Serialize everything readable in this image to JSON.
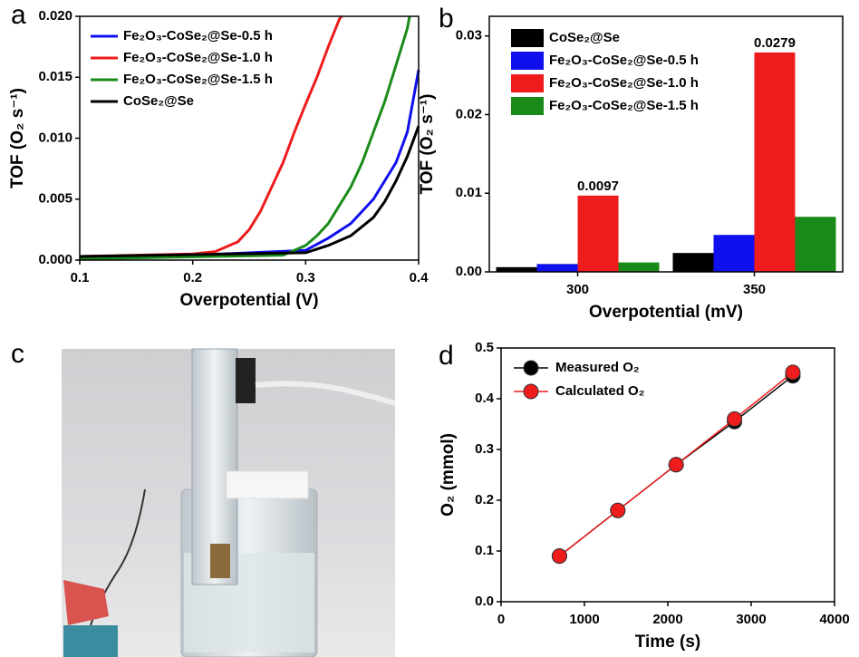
{
  "chart_data": [
    {
      "type": "line",
      "panel": "a",
      "xlabel": "Overpotential (V)",
      "ylabel": "TOF (O₂ s⁻¹)",
      "xlim": [
        0.1,
        0.4
      ],
      "ylim": [
        0,
        0.02
      ],
      "xticks": [
        0.1,
        0.2,
        0.3,
        0.4
      ],
      "yticks": [
        {
          "value": 0,
          "label": "0.000"
        },
        {
          "value": 0.005,
          "label": "0.005"
        },
        {
          "value": 0.01,
          "label": "0.010"
        },
        {
          "value": 0.015,
          "label": "0.015"
        },
        {
          "value": 0.02,
          "label": "0.020"
        }
      ],
      "legend": "upper left",
      "series": [
        {
          "name": "Fe₂O₃-CoSe₂@Se-0.5 h",
          "color": "#1010ee",
          "x": [
            0.1,
            0.2,
            0.3,
            0.32,
            0.34,
            0.36,
            0.38,
            0.39,
            0.4
          ],
          "values": [
            0.0003,
            0.0004,
            0.0008,
            0.0018,
            0.003,
            0.005,
            0.008,
            0.0105,
            0.0156
          ]
        },
        {
          "name": "Fe₂O₃-CoSe₂@Se-1.0 h",
          "color": "#ee1c1c",
          "x": [
            0.1,
            0.2,
            0.22,
            0.24,
            0.25,
            0.26,
            0.27,
            0.28,
            0.29,
            0.3,
            0.31,
            0.32,
            0.33,
            0.332
          ],
          "values": [
            0.0003,
            0.0005,
            0.0007,
            0.0015,
            0.0025,
            0.004,
            0.006,
            0.008,
            0.0105,
            0.0128,
            0.015,
            0.0175,
            0.0198,
            0.02
          ]
        },
        {
          "name": "Fe₂O₃-CoSe₂@Se-1.5 h",
          "color": "#1a8a1a",
          "x": [
            0.1,
            0.28,
            0.3,
            0.31,
            0.32,
            0.33,
            0.34,
            0.35,
            0.36,
            0.37,
            0.38,
            0.39,
            0.392
          ],
          "values": [
            0.0001,
            0.0004,
            0.0012,
            0.002,
            0.003,
            0.0045,
            0.006,
            0.008,
            0.0105,
            0.013,
            0.016,
            0.019,
            0.02
          ]
        },
        {
          "name": "CoSe₂@Se",
          "color": "#000000",
          "x": [
            0.1,
            0.3,
            0.32,
            0.34,
            0.36,
            0.37,
            0.38,
            0.39,
            0.4
          ],
          "values": [
            0.0003,
            0.0006,
            0.0012,
            0.002,
            0.0035,
            0.0048,
            0.0065,
            0.0085,
            0.011
          ]
        }
      ]
    },
    {
      "type": "bar",
      "panel": "b",
      "xlabel": "Overpotential (mV)",
      "ylabel": "TOF (O₂ s⁻¹)",
      "categories": [
        "300",
        "350"
      ],
      "ylim": [
        0,
        0.0325
      ],
      "yticks": [
        {
          "value": 0,
          "label": "0.00"
        },
        {
          "value": 0.01,
          "label": "0.01"
        },
        {
          "value": 0.02,
          "label": "0.02"
        },
        {
          "value": 0.03,
          "label": "0.03"
        }
      ],
      "legend": "upper left",
      "series": [
        {
          "name": "CoSe₂@Se",
          "color": "#000000",
          "values": [
            0.0006,
            0.0024
          ]
        },
        {
          "name": "Fe₂O₃-CoSe₂@Se-0.5 h",
          "color": "#1010ee",
          "values": [
            0.001,
            0.0047
          ]
        },
        {
          "name": "Fe₂O₃-CoSe₂@Se-1.0 h",
          "color": "#ee1c1c",
          "values": [
            0.0097,
            0.0279
          ],
          "show_value_labels": true
        },
        {
          "name": "Fe₂O₃-CoSe₂@Se-1.5 h",
          "color": "#1a8a1a",
          "values": [
            0.0012,
            0.007
          ]
        }
      ]
    },
    {
      "type": "photo",
      "panel": "c"
    },
    {
      "type": "scatter",
      "panel": "d",
      "xlabel": "Time (s)",
      "ylabel": "O₂ (mmol)",
      "xlim": [
        0,
        4000
      ],
      "ylim": [
        0,
        0.5
      ],
      "xticks": [
        0,
        1000,
        2000,
        3000,
        4000
      ],
      "yticks": [
        {
          "value": 0,
          "label": "0.0"
        },
        {
          "value": 0.1,
          "label": "0.1"
        },
        {
          "value": 0.2,
          "label": "0.2"
        },
        {
          "value": 0.3,
          "label": "0.3"
        },
        {
          "value": 0.4,
          "label": "0.4"
        },
        {
          "value": 0.5,
          "label": "0.5"
        }
      ],
      "legend": "upper left",
      "x": [
        700,
        1400,
        2100,
        2800,
        3500
      ],
      "series": [
        {
          "name": "Measured O₂",
          "color": "#000000",
          "values": [
            0.09,
            0.18,
            0.27,
            0.355,
            0.445
          ]
        },
        {
          "name": "Calculated O₂",
          "color": "#ee1c1c",
          "values": [
            0.09,
            0.18,
            0.27,
            0.36,
            0.452
          ]
        }
      ]
    }
  ]
}
